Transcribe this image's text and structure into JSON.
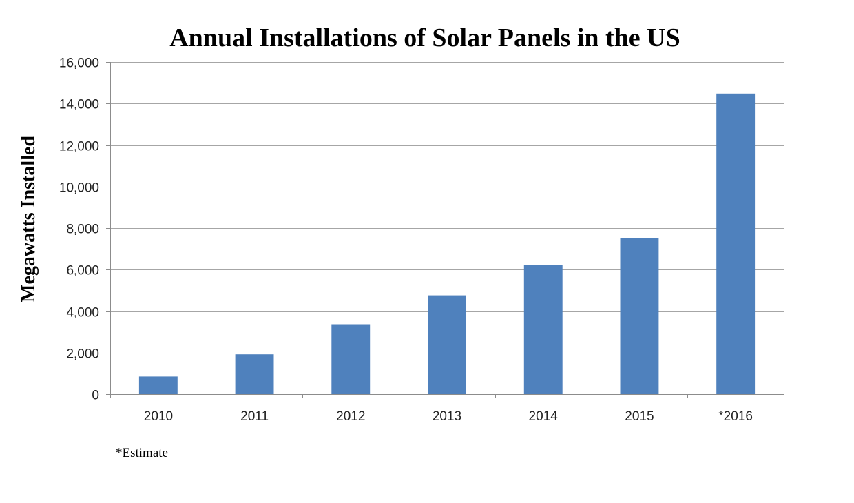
{
  "chart_data": {
    "type": "bar",
    "title": "Annual Installations of Solar Panels in the US",
    "xlabel": "",
    "ylabel": "Megawatts Installed",
    "categories": [
      "2010",
      "2011",
      "2012",
      "2013",
      "2014",
      "2015",
      "*2016"
    ],
    "values": [
      850,
      1920,
      3370,
      4760,
      6230,
      7530,
      14480
    ],
    "ylim": [
      0,
      16000
    ],
    "yticks": [
      0,
      2000,
      4000,
      6000,
      8000,
      10000,
      12000,
      14000,
      16000
    ],
    "ytick_labels": [
      "0",
      "2,000",
      "4,000",
      "6,000",
      "8,000",
      "10,000",
      "12,000",
      "14,000",
      "16,000"
    ],
    "grid": true,
    "legend": "none",
    "bar_color": "#4f81bd",
    "annotation": "*Estimate"
  }
}
